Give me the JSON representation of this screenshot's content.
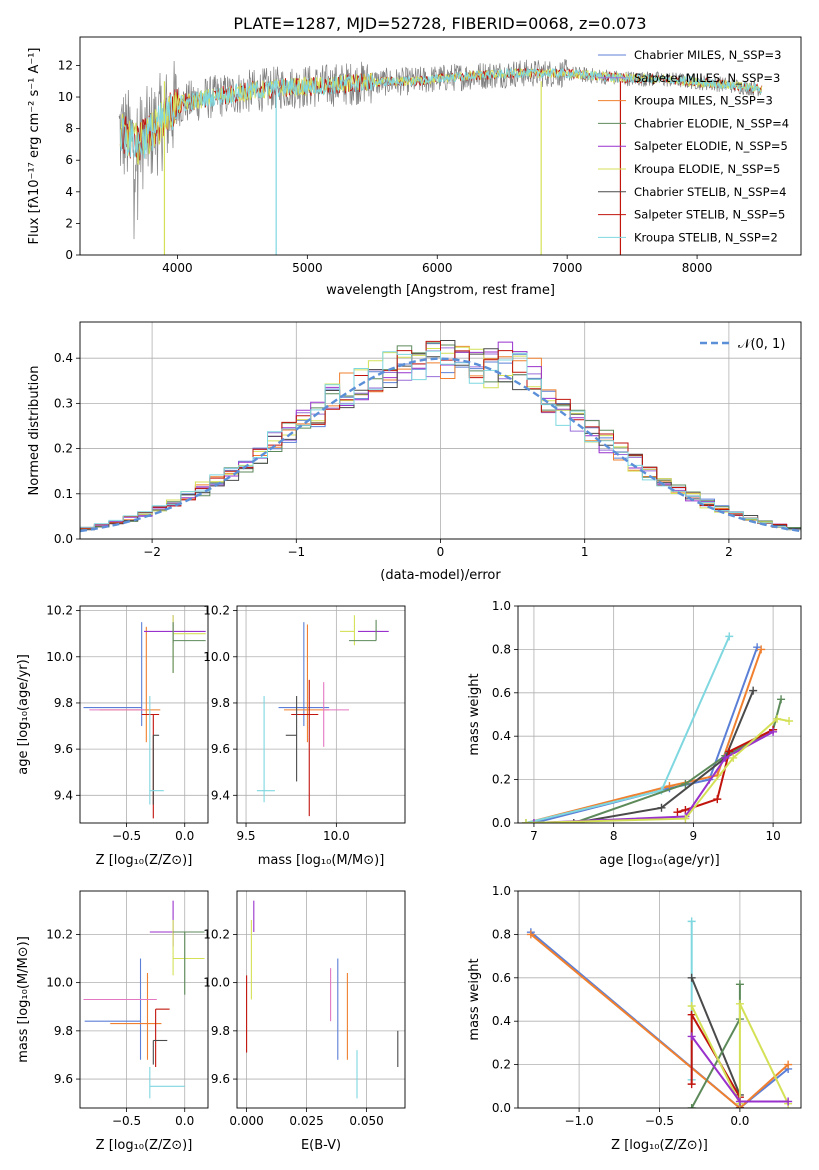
{
  "figure_title": "PLATE=1287, MJD=52728, FIBERID=0068, z=0.073",
  "colors": {
    "Chabrier MILES": "#5b7fd6",
    "Salpeter MILES": "#9b6fd9",
    "Kroupa MILES": "#f0802f",
    "Chabrier ELODIE": "#5d8a5a",
    "Salpeter ELODIE": "#9932cc",
    "Kroupa ELODIE": "#d4e157",
    "Chabrier STELIB": "#4a4a4a",
    "Salpeter STELIB": "#c0140c",
    "Kroupa STELIB": "#7fd7e0",
    "data": "#808080",
    "normal": "#5b8fd8",
    "pink": "#e377c2"
  },
  "chart_data": [
    {
      "type": "line",
      "title": "PLATE=1287, MJD=52728, FIBERID=0068, z=0.073",
      "xlabel": "wavelength [Angstrom, rest frame]",
      "ylabel": "Flux [fλ10⁻¹⁷ erg cm⁻² s⁻¹ A⁻¹]",
      "xlim": [
        3250,
        8800
      ],
      "ylim": [
        0,
        13.8
      ],
      "xticks": [
        "4000",
        "5000",
        "6000",
        "7000",
        "8000"
      ],
      "yticks": [
        "0",
        "2",
        "4",
        "6",
        "8",
        "10",
        "12"
      ],
      "legend": [
        "Chabrier MILES, N_SSP=3",
        "Salpeter MILES, N_SSP=3",
        "Kroupa MILES, N_SSP=3",
        "Chabrier ELODIE, N_SSP=4",
        "Salpeter ELODIE, N_SSP=5",
        "Kroupa ELODIE, N_SSP=5",
        "Chabrier STELIB, N_SSP=4",
        "Salpeter STELIB, N_SSP=5",
        "Kroupa STELIB, N_SSP=2"
      ],
      "legend_placement": "right",
      "continuum": {
        "x": [
          3550,
          3700,
          3850,
          4000,
          4200,
          4500,
          4800,
          5100,
          5400,
          5800,
          6200,
          6600,
          7000,
          7400,
          7800,
          8200,
          8500
        ],
        "y": [
          7.8,
          7.0,
          8.2,
          9.5,
          9.9,
          10.3,
          10.6,
          10.7,
          10.9,
          11.0,
          11.3,
          11.5,
          11.5,
          11.2,
          11.1,
          10.8,
          10.5
        ]
      }
    },
    {
      "type": "bar",
      "title": "",
      "xlabel": "(data-model)/error",
      "ylabel": "Normed distribution",
      "xlim": [
        -2.5,
        2.5
      ],
      "ylim": [
        0,
        0.48
      ],
      "xticks": [
        "−2",
        "−1",
        "0",
        "1",
        "2"
      ],
      "yticks": [
        "0.0",
        "0.1",
        "0.2",
        "0.3",
        "0.4"
      ],
      "legend": [
        "𝒩(0, 1)"
      ],
      "legend_placement": "top-right",
      "bin_width": 0.1,
      "bins_start": -2.5,
      "base_scale": 1.0
    },
    {
      "type": "scatter",
      "xlabel": "Z [log₁₀(Z/Z⊙)]",
      "ylabel": "age  [log₁₀(age/yr)]",
      "xlim": [
        -0.9,
        0.2
      ],
      "ylim": [
        9.28,
        10.22
      ],
      "xticks": [
        "−0.5",
        "0.0"
      ],
      "yticks": [
        "9.4",
        "9.6",
        "9.8",
        "10.0",
        "10.2"
      ],
      "points": [
        {
          "series": "Chabrier MILES",
          "x": -0.37,
          "y": 9.78,
          "xerr": [
            0.5,
            0.0
          ],
          "yerr": [
            0.08,
            0.37
          ]
        },
        {
          "series": "Kroupa MILES",
          "x": -0.33,
          "y": 9.77,
          "xerr": [
            0.4,
            0.12
          ],
          "yerr": [
            0.14,
            0.36
          ]
        },
        {
          "series": "pink",
          "x": -0.47,
          "y": 9.77,
          "xerr": [
            0.35,
            0.13
          ],
          "yerr": [
            0.0,
            0.0
          ]
        },
        {
          "series": "Salpeter STELIB",
          "x": -0.27,
          "y": 9.75,
          "xerr": [
            0.1,
            0.05
          ],
          "yerr": [
            0.45,
            0.0
          ]
        },
        {
          "series": "Chabrier STELIB",
          "x": -0.27,
          "y": 9.66,
          "xerr": [
            0.0,
            0.05
          ],
          "yerr": [
            0.3,
            0.0
          ]
        },
        {
          "series": "Kroupa STELIB",
          "x": -0.3,
          "y": 9.42,
          "xerr": [
            0.0,
            0.12
          ],
          "yerr": [
            0.06,
            0.41
          ]
        },
        {
          "series": "Salpeter ELODIE",
          "x": -0.1,
          "y": 10.11,
          "xerr": [
            0.25,
            0.28
          ],
          "yerr": [
            0.05,
            0.07
          ]
        },
        {
          "series": "Kroupa ELODIE",
          "x": -0.1,
          "y": 10.1,
          "xerr": [
            0.0,
            0.28
          ],
          "yerr": [
            0.17,
            0.08
          ]
        },
        {
          "series": "Chabrier ELODIE",
          "x": -0.1,
          "y": 10.07,
          "xerr": [
            0.0,
            0.28
          ],
          "yerr": [
            0.14,
            0.08
          ]
        }
      ]
    },
    {
      "type": "scatter",
      "xlabel": "mass [log₁₀(M/M⊙)]",
      "ylabel": "",
      "xlim": [
        9.45,
        10.38
      ],
      "ylim": [
        9.28,
        10.22
      ],
      "xticks": [
        "9.5",
        "10.0"
      ],
      "yticks": [
        "9.4",
        "9.6",
        "9.8",
        "10.0",
        "10.2"
      ],
      "points": [
        {
          "series": "Chabrier MILES",
          "x": 9.82,
          "y": 9.78,
          "xerr": [
            0.14,
            0.14
          ],
          "yerr": [
            0.08,
            0.37
          ]
        },
        {
          "series": "Kroupa MILES",
          "x": 9.84,
          "y": 9.77,
          "xerr": [
            0.13,
            0.12
          ],
          "yerr": [
            0.14,
            0.37
          ]
        },
        {
          "series": "pink",
          "x": 9.93,
          "y": 9.77,
          "xerr": [
            0.0,
            0.14
          ],
          "yerr": [
            0.16,
            0.12
          ]
        },
        {
          "series": "Salpeter STELIB",
          "x": 9.85,
          "y": 9.75,
          "xerr": [
            0.1,
            0.05
          ],
          "yerr": [
            0.44,
            0.15
          ]
        },
        {
          "series": "Chabrier STELIB",
          "x": 9.78,
          "y": 9.66,
          "xerr": [
            0.06,
            0.0
          ],
          "yerr": [
            0.2,
            0.17
          ]
        },
        {
          "series": "Kroupa STELIB",
          "x": 9.6,
          "y": 9.42,
          "xerr": [
            0.04,
            0.06
          ],
          "yerr": [
            0.05,
            0.41
          ]
        },
        {
          "series": "Salpeter ELODIE",
          "x": 10.2,
          "y": 10.11,
          "xerr": [
            0.08,
            0.09
          ],
          "yerr": [
            0.0,
            0.0
          ]
        },
        {
          "series": "Kroupa ELODIE",
          "x": 10.1,
          "y": 10.11,
          "xerr": [
            0.08,
            0.0
          ],
          "yerr": [
            0.06,
            0.07
          ]
        },
        {
          "series": "Chabrier ELODIE",
          "x": 10.22,
          "y": 10.07,
          "xerr": [
            0.15,
            0.0
          ],
          "yerr": [
            0.0,
            0.09
          ]
        }
      ]
    },
    {
      "type": "line",
      "xlabel": "age  [log₁₀(age/yr)]",
      "ylabel": "mass weight",
      "xlim": [
        6.8,
        10.35
      ],
      "ylim": [
        0,
        1
      ],
      "xticks": [
        "7",
        "8",
        "9",
        "10"
      ],
      "yticks": [
        "0.0",
        "0.2",
        "0.4",
        "0.6",
        "0.8",
        "1.0"
      ],
      "series": [
        {
          "series": "Chabrier MILES",
          "x": [
            7.0,
            8.7,
            9.2,
            9.8
          ],
          "y": [
            0.0,
            0.16,
            0.2,
            0.81
          ]
        },
        {
          "series": "Kroupa MILES",
          "x": [
            6.9,
            8.7,
            9.3,
            9.85
          ],
          "y": [
            0.0,
            0.17,
            0.22,
            0.8
          ]
        },
        {
          "series": "Kroupa STELIB",
          "x": [
            6.9,
            8.6,
            9.45
          ],
          "y": [
            0.0,
            0.15,
            0.86
          ]
        },
        {
          "series": "Chabrier ELODIE",
          "x": [
            7.5,
            8.9,
            9.4,
            10.0,
            10.1
          ],
          "y": [
            0.0,
            0.18,
            0.31,
            0.43,
            0.57
          ]
        },
        {
          "series": "Chabrier STELIB",
          "x": [
            7.5,
            8.6,
            9.4,
            9.75
          ],
          "y": [
            0.0,
            0.07,
            0.3,
            0.61
          ]
        },
        {
          "series": "Salpeter STELIB",
          "x": [
            8.8,
            8.9,
            9.3,
            9.45,
            10.0
          ],
          "y": [
            0.05,
            0.06,
            0.11,
            0.33,
            0.43
          ]
        },
        {
          "series": "Salpeter ELODIE",
          "x": [
            7.0,
            8.9,
            9.4,
            10.0
          ],
          "y": [
            0.0,
            0.03,
            0.3,
            0.42
          ]
        },
        {
          "series": "Kroupa ELODIE",
          "x": [
            6.9,
            8.9,
            9.5,
            10.05,
            10.2
          ],
          "y": [
            0.0,
            0.02,
            0.3,
            0.48,
            0.47
          ]
        }
      ]
    },
    {
      "type": "scatter",
      "xlabel": "Z [log₁₀(Z/Z⊙)]",
      "ylabel": "mass [log₁₀(M/M⊙)]",
      "xlim": [
        -0.9,
        0.2
      ],
      "ylim": [
        9.48,
        10.38
      ],
      "xticks": [
        "−0.5",
        "0.0"
      ],
      "yticks": [
        "9.6",
        "9.8",
        "10.0",
        "10.2"
      ],
      "points": [
        {
          "series": "Chabrier MILES",
          "x": -0.38,
          "y": 9.84,
          "xerr": [
            0.48,
            0.0
          ],
          "yerr": [
            0.16,
            0.26
          ]
        },
        {
          "series": "Kroupa MILES",
          "x": -0.32,
          "y": 9.83,
          "xerr": [
            0.32,
            0.12
          ],
          "yerr": [
            0.15,
            0.21
          ]
        },
        {
          "series": "pink",
          "x": -0.42,
          "y": 9.93,
          "xerr": [
            0.45,
            0.18
          ],
          "yerr": [
            0.0,
            0.0
          ]
        },
        {
          "series": "Salpeter STELIB",
          "x": -0.25,
          "y": 9.89,
          "xerr": [
            0.0,
            0.12
          ],
          "yerr": [
            0.24,
            0.0
          ]
        },
        {
          "series": "Chabrier STELIB",
          "x": -0.27,
          "y": 9.76,
          "xerr": [
            0.0,
            0.12
          ],
          "yerr": [
            0.1,
            0.0
          ]
        },
        {
          "series": "Kroupa STELIB",
          "x": -0.3,
          "y": 9.57,
          "xerr": [
            0.0,
            0.3
          ],
          "yerr": [
            0.05,
            0.08
          ]
        },
        {
          "series": "Salpeter ELODIE",
          "x": -0.1,
          "y": 10.21,
          "xerr": [
            0.2,
            0.27
          ],
          "yerr": [
            0.06,
            0.13
          ]
        },
        {
          "series": "Kroupa ELODIE",
          "x": -0.1,
          "y": 10.1,
          "xerr": [
            0.0,
            0.27
          ],
          "yerr": [
            0.07,
            0.16
          ]
        },
        {
          "series": "Chabrier ELODIE",
          "x": 0.0,
          "y": 10.21,
          "xerr": [
            0.1,
            0.17
          ],
          "yerr": [
            0.26,
            0.0
          ]
        }
      ]
    },
    {
      "type": "scatter",
      "xlabel": "E(B-V)",
      "ylabel": "",
      "xlim": [
        -0.004,
        0.066
      ],
      "ylim": [
        9.48,
        10.38
      ],
      "xticks": [
        "0.000",
        "0.025",
        "0.050"
      ],
      "yticks": [
        "9.6",
        "9.8",
        "10.0",
        "10.2"
      ],
      "points": [
        {
          "series": "Salpeter STELIB",
          "x": 0.0,
          "y": 9.89,
          "xerr": [
            0.0,
            0.0
          ],
          "yerr": [
            0.18,
            0.14
          ]
        },
        {
          "series": "Kroupa ELODIE",
          "x": 0.002,
          "y": 10.1,
          "xerr": [
            0.0,
            0.0
          ],
          "yerr": [
            0.17,
            0.16
          ]
        },
        {
          "series": "Salpeter ELODIE",
          "x": 0.003,
          "y": 10.21,
          "xerr": [
            0.0,
            0.0
          ],
          "yerr": [
            0.0,
            0.13
          ]
        },
        {
          "series": "pink",
          "x": 0.035,
          "y": 9.93,
          "xerr": [
            0.0,
            0.0
          ],
          "yerr": [
            0.09,
            0.13
          ]
        },
        {
          "series": "Chabrier MILES",
          "x": 0.038,
          "y": 9.84,
          "xerr": [
            0.0,
            0.0
          ],
          "yerr": [
            0.16,
            0.26
          ]
        },
        {
          "series": "Kroupa MILES",
          "x": 0.042,
          "y": 9.83,
          "xerr": [
            0.0,
            0.0
          ],
          "yerr": [
            0.15,
            0.21
          ]
        },
        {
          "series": "Kroupa STELIB",
          "x": 0.046,
          "y": 9.57,
          "xerr": [
            0.0,
            0.0
          ],
          "yerr": [
            0.05,
            0.15
          ]
        },
        {
          "series": "Chabrier STELIB",
          "x": 0.063,
          "y": 9.72,
          "xerr": [
            0.0,
            0.0
          ],
          "yerr": [
            0.07,
            0.08
          ]
        }
      ]
    },
    {
      "type": "line",
      "xlabel": "Z [log₁₀(Z/Z⊙)]",
      "ylabel": "mass weight",
      "xlim": [
        -1.38,
        0.38
      ],
      "ylim": [
        0,
        1
      ],
      "xticks": [
        "−1.0",
        "−0.5",
        "0.0"
      ],
      "yticks": [
        "0.0",
        "0.2",
        "0.4",
        "0.6",
        "0.8",
        "1.0"
      ],
      "series": [
        {
          "series": "Chabrier MILES",
          "x": [
            -1.3,
            0.0,
            0.3
          ],
          "y": [
            0.81,
            0.0,
            0.18
          ]
        },
        {
          "series": "Kroupa MILES",
          "x": [
            -1.3,
            0.0,
            0.3
          ],
          "y": [
            0.8,
            0.0,
            0.2
          ]
        },
        {
          "series": "Kroupa STELIB",
          "x": [
            -0.3,
            -0.3
          ],
          "y": [
            0.86,
            0.13
          ]
        },
        {
          "series": "Chabrier STELIB",
          "x": [
            -0.3,
            0.0,
            0.0
          ],
          "y": [
            0.6,
            0.06,
            0.0
          ]
        },
        {
          "series": "Salpeter STELIB",
          "x": [
            -0.3,
            -0.3,
            0.0,
            0.0
          ],
          "y": [
            0.11,
            0.43,
            0.05,
            0.0
          ]
        },
        {
          "series": "Chabrier ELODIE",
          "x": [
            -0.3,
            0.0,
            0.0
          ],
          "y": [
            0.0,
            0.41,
            0.57
          ]
        },
        {
          "series": "Kroupa ELODIE",
          "x": [
            -0.3,
            0.0,
            0.0,
            0.3
          ],
          "y": [
            0.47,
            0.02,
            0.48,
            0.02
          ]
        },
        {
          "series": "Salpeter ELODIE",
          "x": [
            -0.3,
            0.0,
            0.3
          ],
          "y": [
            0.33,
            0.03,
            0.03
          ]
        }
      ]
    }
  ]
}
